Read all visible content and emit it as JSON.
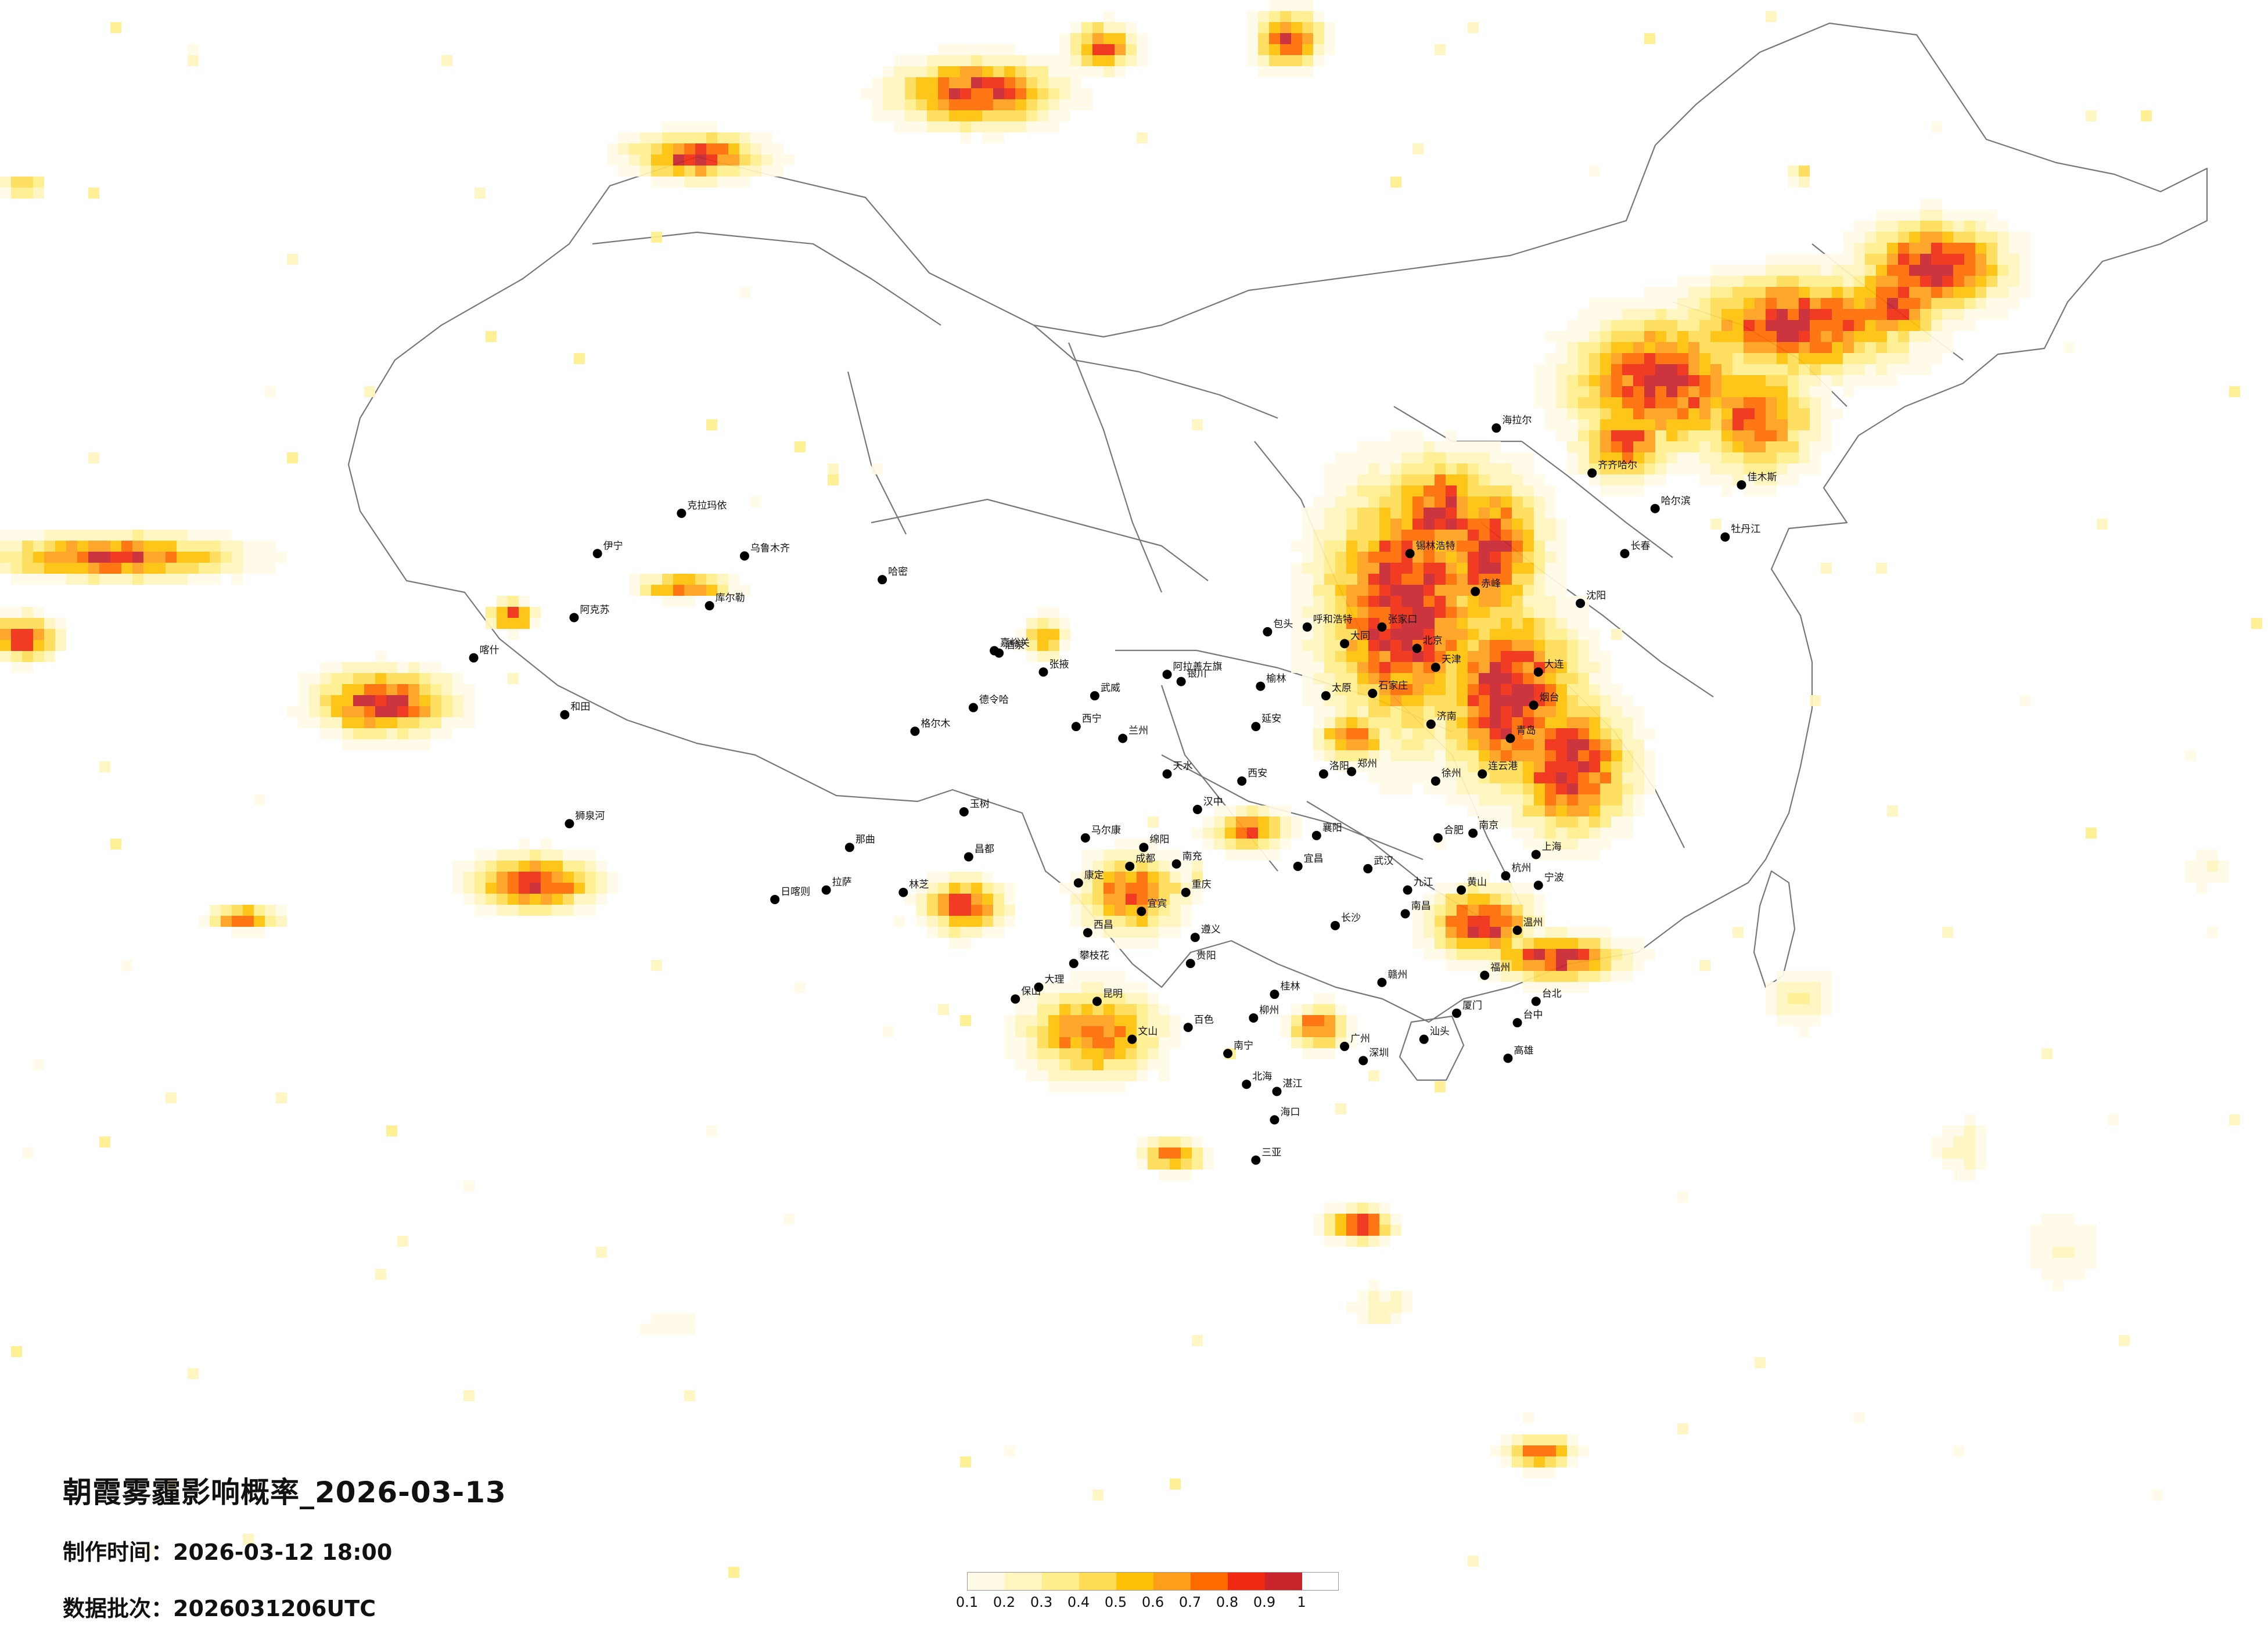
{
  "title": "朝霞雾霾影响概率_2026-03-13",
  "production_time_label": "制作时间：",
  "production_time": "2026-03-12 18:00",
  "batch_label": "数据批次：",
  "batch": "2026031206UTC",
  "legend": {
    "ticks": [
      "0.1",
      "0.2",
      "0.3",
      "0.4",
      "0.5",
      "0.6",
      "0.7",
      "0.8",
      "0.9",
      "1"
    ],
    "colors": [
      "#fffbe6",
      "#fff5bf",
      "#ffee8c",
      "#ffdc55",
      "#ffc107",
      "#ff9e1a",
      "#ff6a00",
      "#f02a10",
      "#c8242c",
      "#c8242c"
    ]
  },
  "cities": [
    {
      "name": "哈尔滨",
      "lon": 126.6,
      "lat": 45.8
    },
    {
      "name": "长春",
      "lon": 125.3,
      "lat": 43.9
    },
    {
      "name": "沈阳",
      "lon": 123.4,
      "lat": 41.8
    },
    {
      "name": "大连",
      "lon": 121.6,
      "lat": 38.9
    },
    {
      "name": "北京",
      "lon": 116.4,
      "lat": 39.9
    },
    {
      "name": "天津",
      "lon": 117.2,
      "lat": 39.1
    },
    {
      "name": "石家庄",
      "lon": 114.5,
      "lat": 38.0
    },
    {
      "name": "太原",
      "lon": 112.5,
      "lat": 37.9
    },
    {
      "name": "呼和浩特",
      "lon": 111.7,
      "lat": 40.8
    },
    {
      "name": "济南",
      "lon": 117.0,
      "lat": 36.7
    },
    {
      "name": "青岛",
      "lon": 120.4,
      "lat": 36.1
    },
    {
      "name": "郑州",
      "lon": 113.6,
      "lat": 34.7
    },
    {
      "name": "西安",
      "lon": 108.9,
      "lat": 34.3
    },
    {
      "name": "兰州",
      "lon": 103.8,
      "lat": 36.1
    },
    {
      "name": "西宁",
      "lon": 101.8,
      "lat": 36.6
    },
    {
      "name": "银川",
      "lon": 106.3,
      "lat": 38.5
    },
    {
      "name": "乌鲁木齐",
      "lon": 87.6,
      "lat": 43.8
    },
    {
      "name": "拉萨",
      "lon": 91.1,
      "lat": 29.7
    },
    {
      "name": "成都",
      "lon": 104.1,
      "lat": 30.7
    },
    {
      "name": "重庆",
      "lon": 106.5,
      "lat": 29.6
    },
    {
      "name": "贵阳",
      "lon": 106.7,
      "lat": 26.6
    },
    {
      "name": "昆明",
      "lon": 102.7,
      "lat": 25.0
    },
    {
      "name": "南宁",
      "lon": 108.3,
      "lat": 22.8
    },
    {
      "name": "广州",
      "lon": 113.3,
      "lat": 23.1
    },
    {
      "name": "深圳",
      "lon": 114.1,
      "lat": 22.5
    },
    {
      "name": "海口",
      "lon": 110.3,
      "lat": 20.0
    },
    {
      "name": "长沙",
      "lon": 112.9,
      "lat": 28.2
    },
    {
      "name": "武汉",
      "lon": 114.3,
      "lat": 30.6
    },
    {
      "name": "南昌",
      "lon": 115.9,
      "lat": 28.7
    },
    {
      "name": "福州",
      "lon": 119.3,
      "lat": 26.1
    },
    {
      "name": "杭州",
      "lon": 120.2,
      "lat": 30.3
    },
    {
      "name": "上海",
      "lon": 121.5,
      "lat": 31.2
    },
    {
      "name": "南京",
      "lon": 118.8,
      "lat": 32.1
    },
    {
      "name": "合肥",
      "lon": 117.3,
      "lat": 31.9
    },
    {
      "name": "台北",
      "lon": 121.5,
      "lat": 25.0
    },
    {
      "name": "台中",
      "lon": 120.7,
      "lat": 24.1
    },
    {
      "name": "高雄",
      "lon": 120.3,
      "lat": 22.6
    },
    {
      "name": "喀什",
      "lon": 76.0,
      "lat": 39.5
    },
    {
      "name": "和田",
      "lon": 79.9,
      "lat": 37.1
    },
    {
      "name": "阿克苏",
      "lon": 80.3,
      "lat": 41.2
    },
    {
      "name": "伊宁",
      "lon": 81.3,
      "lat": 43.9
    },
    {
      "name": "克拉玛依",
      "lon": 84.9,
      "lat": 45.6
    },
    {
      "name": "哈密",
      "lon": 93.5,
      "lat": 42.8
    },
    {
      "name": "库尔勒",
      "lon": 86.1,
      "lat": 41.7
    },
    {
      "name": "格尔木",
      "lon": 94.9,
      "lat": 36.4
    },
    {
      "name": "日喀则",
      "lon": 88.9,
      "lat": 29.3
    },
    {
      "name": "林芝",
      "lon": 94.4,
      "lat": 29.6
    },
    {
      "name": "那曲",
      "lon": 92.1,
      "lat": 31.5
    },
    {
      "name": "昌都",
      "lon": 97.2,
      "lat": 31.1
    },
    {
      "name": "海拉尔",
      "lon": 119.8,
      "lat": 49.2
    },
    {
      "name": "齐齐哈尔",
      "lon": 123.9,
      "lat": 47.3
    },
    {
      "name": "佳木斯",
      "lon": 130.3,
      "lat": 46.8
    },
    {
      "name": "牡丹江",
      "lon": 129.6,
      "lat": 44.6
    },
    {
      "name": "包头",
      "lon": 110.0,
      "lat": 40.6
    },
    {
      "name": "锡林浩特",
      "lon": 116.1,
      "lat": 43.9
    },
    {
      "name": "赤峰",
      "lon": 118.9,
      "lat": 42.3
    },
    {
      "name": "张家口",
      "lon": 114.9,
      "lat": 40.8
    },
    {
      "name": "烟台",
      "lon": 121.4,
      "lat": 37.5
    },
    {
      "name": "徐州",
      "lon": 117.2,
      "lat": 34.3
    },
    {
      "name": "宁波",
      "lon": 121.6,
      "lat": 29.9
    },
    {
      "name": "温州",
      "lon": 120.7,
      "lat": 28.0
    },
    {
      "name": "厦门",
      "lon": 118.1,
      "lat": 24.5
    },
    {
      "name": "汕头",
      "lon": 116.7,
      "lat": 23.4
    },
    {
      "name": "桂林",
      "lon": 110.3,
      "lat": 25.3
    },
    {
      "name": "遵义",
      "lon": 106.9,
      "lat": 27.7
    },
    {
      "name": "宜昌",
      "lon": 111.3,
      "lat": 30.7
    },
    {
      "name": "襄阳",
      "lon": 112.1,
      "lat": 32.0
    },
    {
      "name": "洛阳",
      "lon": 112.4,
      "lat": 34.6
    },
    {
      "name": "大同",
      "lon": 113.3,
      "lat": 40.1
    },
    {
      "name": "榆林",
      "lon": 109.7,
      "lat": 38.3
    },
    {
      "name": "延安",
      "lon": 109.5,
      "lat": 36.6
    },
    {
      "name": "汉中",
      "lon": 107.0,
      "lat": 33.1
    },
    {
      "name": "绵阳",
      "lon": 104.7,
      "lat": 31.5
    },
    {
      "name": "南充",
      "lon": 106.1,
      "lat": 30.8
    },
    {
      "name": "宜宾",
      "lon": 104.6,
      "lat": 28.8
    },
    {
      "name": "大理",
      "lon": 100.2,
      "lat": 25.6
    },
    {
      "name": "保山",
      "lon": 99.2,
      "lat": 25.1
    },
    {
      "name": "西昌",
      "lon": 102.3,
      "lat": 27.9
    },
    {
      "name": "攀枝花",
      "lon": 101.7,
      "lat": 26.6
    },
    {
      "name": "文山",
      "lon": 104.2,
      "lat": 23.4
    },
    {
      "name": "百色",
      "lon": 106.6,
      "lat": 23.9
    },
    {
      "name": "柳州",
      "lon": 109.4,
      "lat": 24.3
    },
    {
      "name": "赣州",
      "lon": 114.9,
      "lat": 25.8
    },
    {
      "name": "九江",
      "lon": 116.0,
      "lat": 29.7
    },
    {
      "name": "黄山",
      "lon": 118.3,
      "lat": 29.7
    },
    {
      "name": "连云港",
      "lon": 119.2,
      "lat": 34.6
    },
    {
      "name": "酒泉",
      "lon": 98.5,
      "lat": 39.7
    },
    {
      "name": "张掖",
      "lon": 100.4,
      "lat": 38.9
    },
    {
      "name": "武威",
      "lon": 102.6,
      "lat": 37.9
    },
    {
      "name": "天水",
      "lon": 105.7,
      "lat": 34.6
    },
    {
      "name": "德令哈",
      "lon": 97.4,
      "lat": 37.4
    },
    {
      "name": "玉树",
      "lon": 97.0,
      "lat": 33.0
    },
    {
      "name": "马尔康",
      "lon": 102.2,
      "lat": 31.9
    },
    {
      "name": "康定",
      "lon": 101.9,
      "lat": 30.0
    },
    {
      "name": "阿拉善左旗",
      "lon": 105.7,
      "lat": 38.8
    },
    {
      "name": "嘉峪关",
      "lon": 98.3,
      "lat": 39.8
    },
    {
      "name": "北海",
      "lon": 109.1,
      "lat": 21.5
    },
    {
      "name": "湛江",
      "lon": 110.4,
      "lat": 21.2
    },
    {
      "name": "三亚",
      "lon": 109.5,
      "lat": 18.3
    },
    {
      "name": "狮泉河",
      "lon": 80.1,
      "lat": 32.5
    }
  ]
}
